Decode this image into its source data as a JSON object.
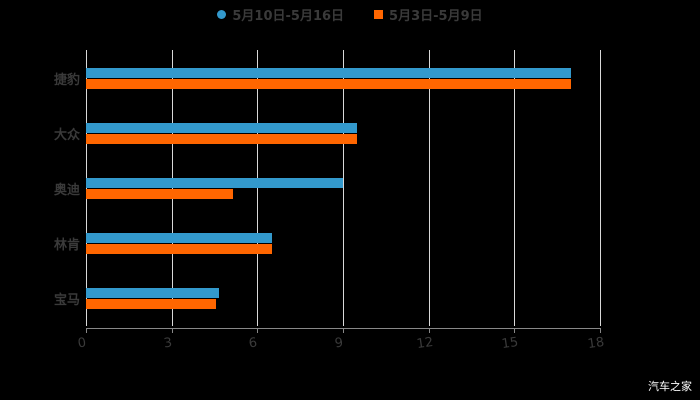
{
  "chart_data": {
    "type": "bar",
    "orientation": "horizontal",
    "title": "",
    "xlabel": "",
    "ylabel": "",
    "categories": [
      "捷豹",
      "大众",
      "奥迪",
      "林肯",
      "宝马"
    ],
    "series": [
      {
        "name": "5月10日-5月16日",
        "color": "#3399cc",
        "values": [
          17,
          9.5,
          9,
          6.5,
          4.65
        ]
      },
      {
        "name": "5月3日-5月9日",
        "color": "#ff6600",
        "values": [
          17,
          9.5,
          5.15,
          6.5,
          4.55
        ]
      }
    ],
    "xlim": [
      0,
      18
    ],
    "xticks": [
      "0",
      "3",
      "6",
      "9",
      "12",
      "15",
      "18"
    ],
    "grid": true,
    "legend_position": "top"
  },
  "legend": [
    {
      "label": "5月10日-5月16日",
      "color": "#3399cc",
      "shape": "circle"
    },
    {
      "label": "5月3日-5月9日",
      "color": "#ff6600",
      "shape": "square"
    }
  ],
  "watermark": "汽车之家"
}
